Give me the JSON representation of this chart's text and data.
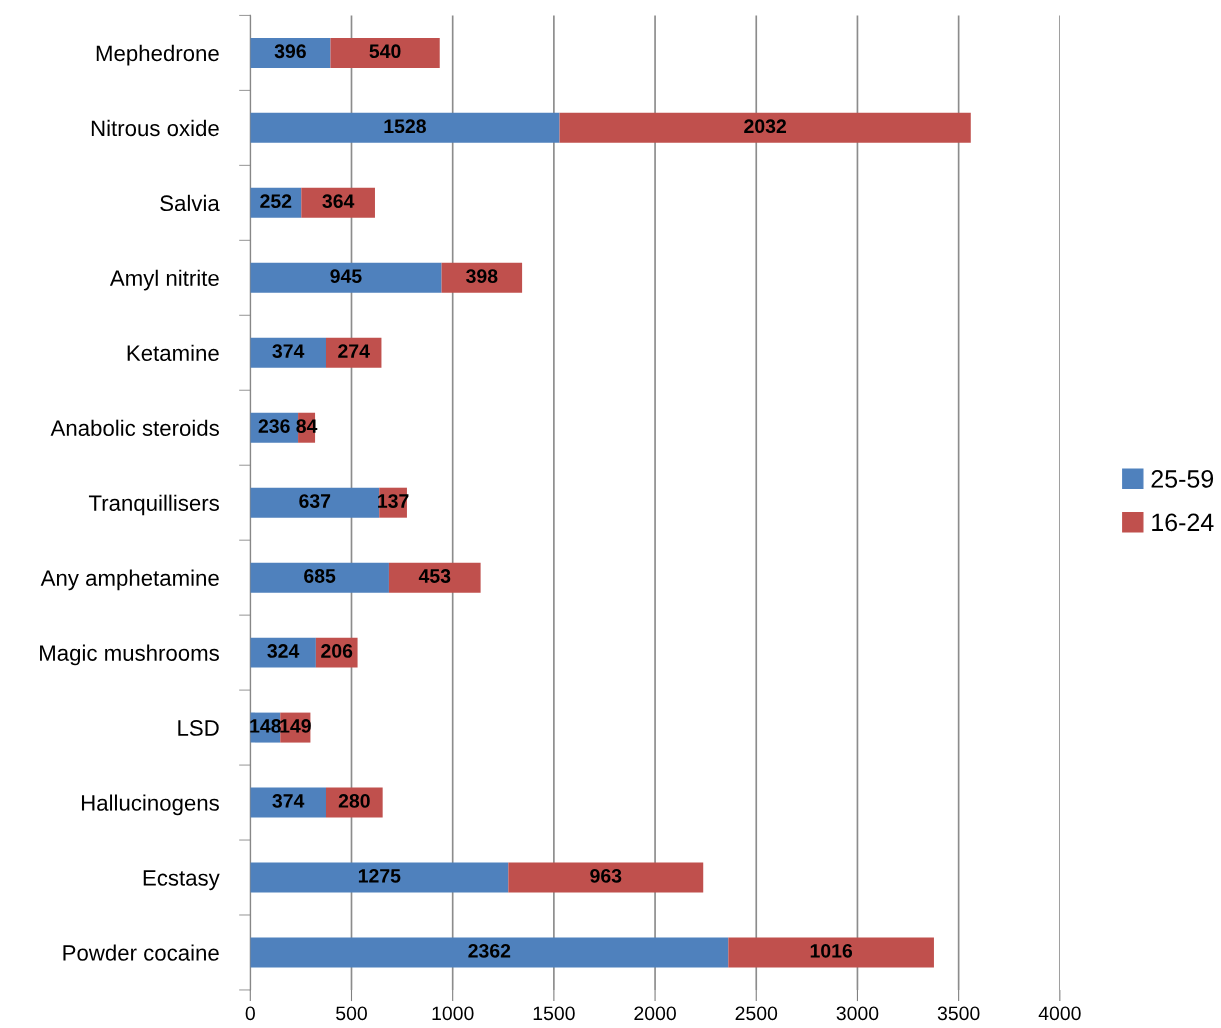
{
  "chart_data": {
    "type": "bar",
    "orientation": "horizontal",
    "stacked": true,
    "categories": [
      "Mephedrone",
      "Nitrous oxide",
      "Salvia",
      "Amyl nitrite",
      "Ketamine",
      "Anabolic steroids",
      "Tranquillisers",
      "Any amphetamine",
      "Magic mushrooms",
      "LSD",
      "Hallucinogens",
      "Ecstasy",
      "Powder cocaine"
    ],
    "series": [
      {
        "name": "25-59",
        "color": "#4f81bd",
        "values": [
          396,
          1528,
          252,
          945,
          374,
          236,
          637,
          685,
          324,
          148,
          374,
          1275,
          2362
        ]
      },
      {
        "name": "16-24",
        "color": "#c0504d",
        "values": [
          540,
          2032,
          364,
          398,
          274,
          84,
          137,
          453,
          206,
          149,
          280,
          963,
          1016
        ]
      }
    ],
    "xlim": [
      0,
      4000
    ],
    "xticks": [
      0,
      500,
      1000,
      1500,
      2000,
      2500,
      3000,
      3500,
      4000
    ],
    "grid": "x",
    "legend": "right",
    "data_labels": true
  }
}
